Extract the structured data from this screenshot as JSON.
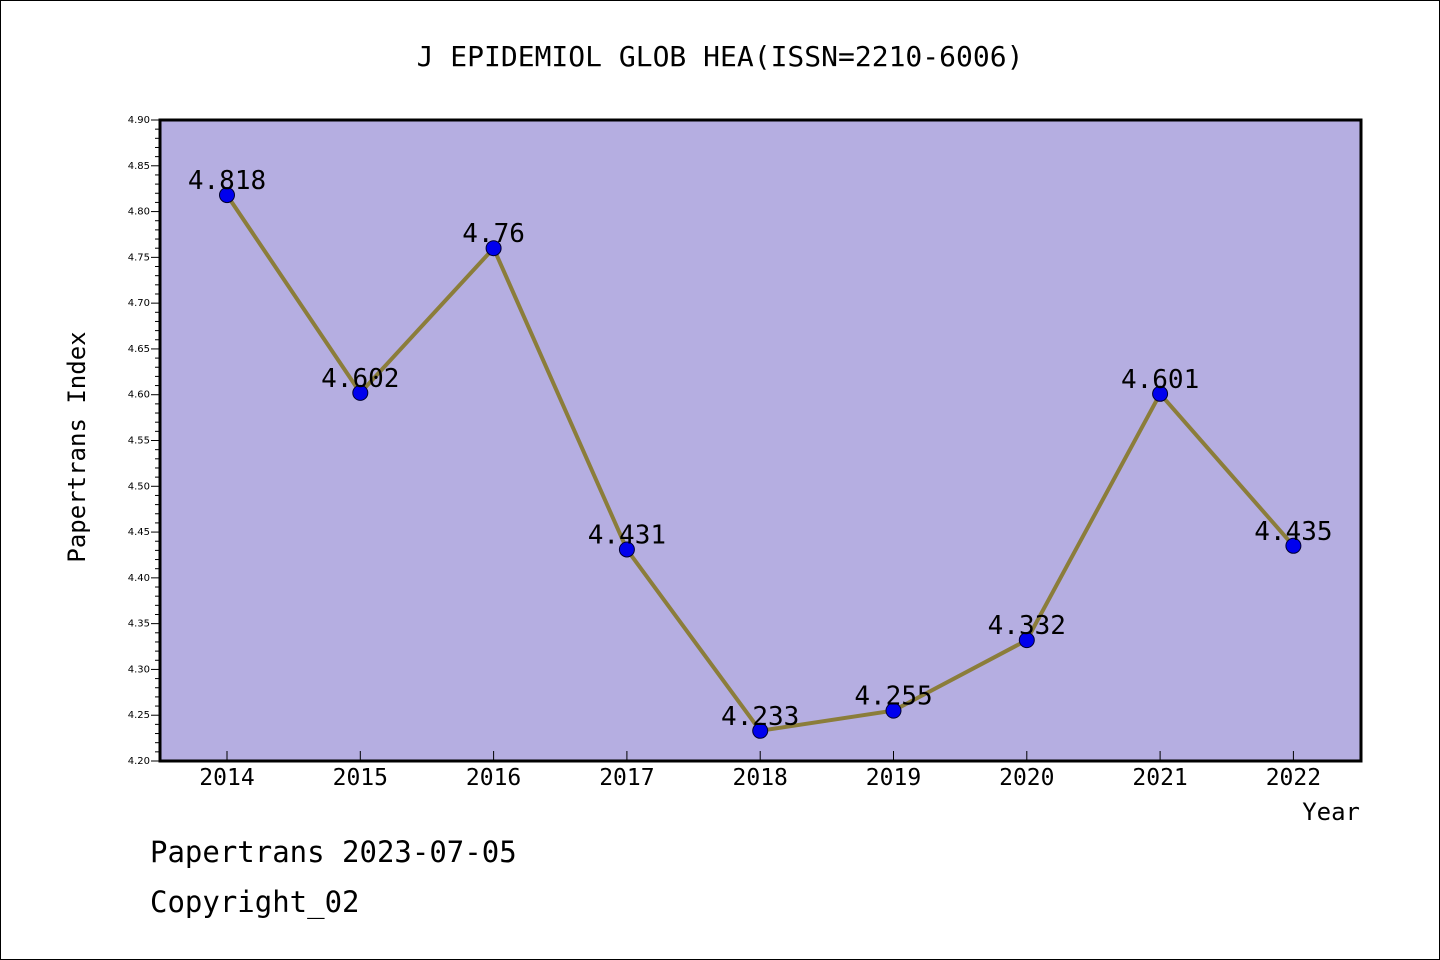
{
  "chart_data": {
    "type": "line",
    "title": "J EPIDEMIOL GLOB HEA(ISSN=2210-6006)",
    "xlabel": "Year",
    "ylabel": "Papertrans Index",
    "categories": [
      "2014",
      "2015",
      "2016",
      "2017",
      "2018",
      "2019",
      "2020",
      "2021",
      "2022"
    ],
    "values": [
      4.818,
      4.602,
      4.76,
      4.431,
      4.233,
      4.255,
      4.332,
      4.601,
      4.435
    ],
    "data_labels": [
      "4.818",
      "4.602",
      "4.76",
      "4.431",
      "4.233",
      "4.255",
      "4.332",
      "4.601",
      "4.435"
    ],
    "ylim": [
      4.2,
      4.9
    ],
    "yticks": [
      "4.20",
      "4.25",
      "4.30",
      "4.35",
      "4.40",
      "4.45",
      "4.50",
      "4.55",
      "4.60",
      "4.65",
      "4.70",
      "4.75",
      "4.80",
      "4.85",
      "4.90"
    ],
    "grid": false,
    "legend": "none",
    "colors": {
      "plot_background": "#b5aee1",
      "line": "#8b7d3a",
      "marker": "#0000ee",
      "axis": "#000000"
    }
  },
  "footer": {
    "line1": "Papertrans 2023-07-05",
    "line2": "Copyright_02"
  }
}
